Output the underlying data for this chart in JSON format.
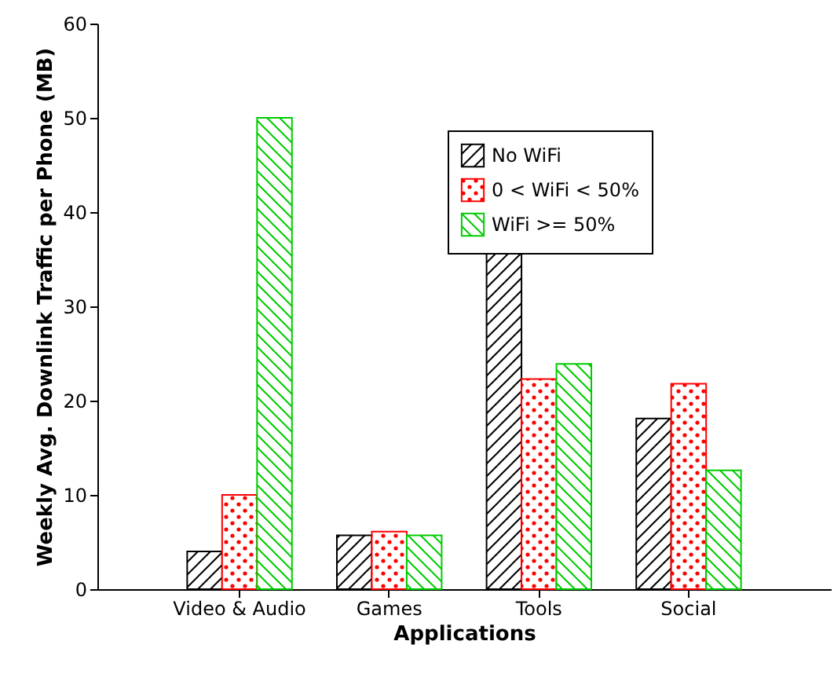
{
  "chart_data": {
    "type": "bar",
    "xlabel": "Applications",
    "ylabel": "Weekly Avg. Downlink Traffic per Phone (MB)",
    "categories": [
      "Video & Audio",
      "Games",
      "Tools",
      "Social"
    ],
    "series": [
      {
        "name": "No WiFi",
        "color": "#000000",
        "values": [
          4.0,
          5.7,
          35.7,
          18.1
        ]
      },
      {
        "name": "0 < WiFi < 50%",
        "color": "#ff0000",
        "values": [
          10.0,
          6.1,
          22.3,
          21.8
        ]
      },
      {
        "name": "WiFi >= 50%",
        "color": "#00cc00",
        "values": [
          50.0,
          5.7,
          23.9,
          12.6
        ]
      }
    ],
    "ylim": [
      0,
      60
    ],
    "yticks": [
      0,
      10,
      20,
      30,
      40,
      50,
      60
    ],
    "grid": false,
    "legend": "top right"
  }
}
